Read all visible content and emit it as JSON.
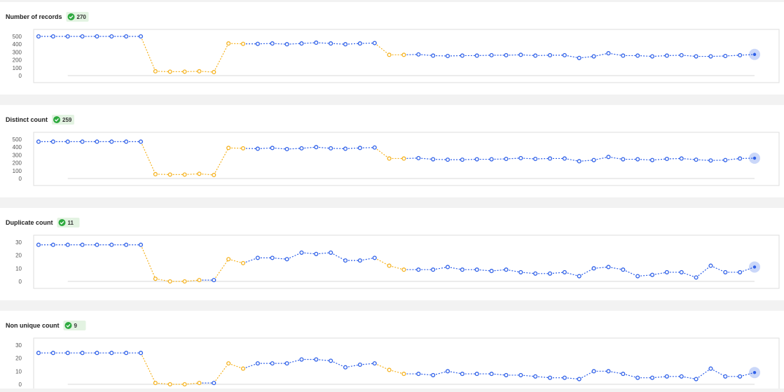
{
  "chart_data": [
    {
      "type": "line",
      "title": "Number of records",
      "badge": 270,
      "ylim": [
        0,
        500
      ],
      "yticks": [
        0,
        100,
        200,
        300,
        400,
        500
      ],
      "values": [
        500,
        500,
        500,
        500,
        500,
        500,
        500,
        500,
        55,
        50,
        50,
        55,
        45,
        410,
        405,
        405,
        410,
        400,
        410,
        420,
        410,
        400,
        410,
        415,
        265,
        265,
        270,
        255,
        250,
        255,
        255,
        260,
        260,
        265,
        255,
        260,
        260,
        225,
        245,
        285,
        255,
        255,
        245,
        255,
        260,
        245,
        245,
        250,
        260,
        270
      ],
      "point_colors": [
        "#2d5fe8",
        "#2d5fe8",
        "#2d5fe8",
        "#2d5fe8",
        "#2d5fe8",
        "#2d5fe8",
        "#2d5fe8",
        "#2d5fe8",
        "#f5b21f",
        "#f5b21f",
        "#f5b21f",
        "#f5b21f",
        "#f5b21f",
        "#f5b21f",
        "#f5b21f",
        "#2d5fe8",
        "#2d5fe8",
        "#2d5fe8",
        "#2d5fe8",
        "#2d5fe8",
        "#2d5fe8",
        "#2d5fe8",
        "#2d5fe8",
        "#2d5fe8",
        "#f5b21f",
        "#f5b21f",
        "#2d5fe8",
        "#2d5fe8",
        "#2d5fe8",
        "#2d5fe8",
        "#2d5fe8",
        "#2d5fe8",
        "#2d5fe8",
        "#2d5fe8",
        "#2d5fe8",
        "#2d5fe8",
        "#2d5fe8",
        "#2d5fe8",
        "#2d5fe8",
        "#2d5fe8",
        "#2d5fe8",
        "#2d5fe8",
        "#2d5fe8",
        "#2d5fe8",
        "#2d5fe8",
        "#2d5fe8",
        "#2d5fe8",
        "#2d5fe8",
        "#2d5fe8",
        "#2d5fe8"
      ]
    },
    {
      "type": "line",
      "title": "Distinct count",
      "badge": 259,
      "ylim": [
        0,
        500
      ],
      "yticks": [
        0,
        100,
        200,
        300,
        400,
        500
      ],
      "values": [
        470,
        470,
        470,
        470,
        470,
        470,
        470,
        470,
        55,
        50,
        50,
        60,
        45,
        390,
        385,
        380,
        390,
        375,
        385,
        400,
        385,
        380,
        390,
        395,
        255,
        255,
        260,
        245,
        240,
        240,
        245,
        245,
        250,
        260,
        250,
        255,
        255,
        220,
        235,
        275,
        245,
        245,
        235,
        250,
        255,
        240,
        230,
        235,
        255,
        259
      ],
      "point_colors": [
        "#2d5fe8",
        "#2d5fe8",
        "#2d5fe8",
        "#2d5fe8",
        "#2d5fe8",
        "#2d5fe8",
        "#2d5fe8",
        "#2d5fe8",
        "#f5b21f",
        "#f5b21f",
        "#f5b21f",
        "#f5b21f",
        "#f5b21f",
        "#f5b21f",
        "#f5b21f",
        "#2d5fe8",
        "#2d5fe8",
        "#2d5fe8",
        "#2d5fe8",
        "#2d5fe8",
        "#2d5fe8",
        "#2d5fe8",
        "#2d5fe8",
        "#2d5fe8",
        "#f5b21f",
        "#f5b21f",
        "#2d5fe8",
        "#2d5fe8",
        "#2d5fe8",
        "#2d5fe8",
        "#2d5fe8",
        "#2d5fe8",
        "#2d5fe8",
        "#2d5fe8",
        "#2d5fe8",
        "#2d5fe8",
        "#2d5fe8",
        "#2d5fe8",
        "#2d5fe8",
        "#2d5fe8",
        "#2d5fe8",
        "#2d5fe8",
        "#2d5fe8",
        "#2d5fe8",
        "#2d5fe8",
        "#2d5fe8",
        "#2d5fe8",
        "#2d5fe8",
        "#2d5fe8",
        "#2d5fe8"
      ]
    },
    {
      "type": "line",
      "title": "Duplicate count",
      "badge": 11,
      "ylim": [
        0,
        30
      ],
      "yticks": [
        0,
        10,
        20,
        30
      ],
      "values": [
        28,
        28,
        28,
        28,
        28,
        28,
        28,
        28,
        2,
        0,
        0,
        1,
        1,
        17,
        14,
        18,
        18,
        17,
        22,
        21,
        22,
        16,
        16,
        18,
        12,
        9,
        9,
        9,
        11,
        9,
        9,
        8,
        9,
        7,
        6,
        6,
        7,
        4,
        10,
        11,
        9,
        4,
        5,
        7,
        7,
        3,
        12,
        7,
        7,
        11
      ],
      "point_colors": [
        "#2d5fe8",
        "#2d5fe8",
        "#2d5fe8",
        "#2d5fe8",
        "#2d5fe8",
        "#2d5fe8",
        "#2d5fe8",
        "#2d5fe8",
        "#f5b21f",
        "#f5b21f",
        "#f5b21f",
        "#f5b21f",
        "#2d5fe8",
        "#f5b21f",
        "#f5b21f",
        "#2d5fe8",
        "#2d5fe8",
        "#2d5fe8",
        "#2d5fe8",
        "#2d5fe8",
        "#2d5fe8",
        "#2d5fe8",
        "#2d5fe8",
        "#2d5fe8",
        "#f5b21f",
        "#f5b21f",
        "#2d5fe8",
        "#2d5fe8",
        "#2d5fe8",
        "#2d5fe8",
        "#2d5fe8",
        "#2d5fe8",
        "#2d5fe8",
        "#2d5fe8",
        "#2d5fe8",
        "#2d5fe8",
        "#2d5fe8",
        "#2d5fe8",
        "#2d5fe8",
        "#2d5fe8",
        "#2d5fe8",
        "#2d5fe8",
        "#2d5fe8",
        "#2d5fe8",
        "#2d5fe8",
        "#2d5fe8",
        "#2d5fe8",
        "#2d5fe8",
        "#2d5fe8",
        "#2d5fe8"
      ]
    },
    {
      "type": "line",
      "title": "Non unique count",
      "badge": 9,
      "ylim": [
        0,
        30
      ],
      "yticks": [
        0,
        10,
        20,
        30
      ],
      "values": [
        24,
        24,
        24,
        24,
        24,
        24,
        24,
        24,
        1,
        0,
        0,
        1,
        1,
        16,
        12,
        16,
        16,
        16,
        19,
        19,
        18,
        13,
        15,
        16,
        11,
        8,
        8,
        7,
        10,
        8,
        8,
        8,
        7,
        7,
        6,
        5,
        5,
        4,
        10,
        10,
        8,
        5,
        5,
        6,
        6,
        4,
        12,
        6,
        6,
        9
      ],
      "point_colors": [
        "#2d5fe8",
        "#2d5fe8",
        "#2d5fe8",
        "#2d5fe8",
        "#2d5fe8",
        "#2d5fe8",
        "#2d5fe8",
        "#2d5fe8",
        "#f5b21f",
        "#f5b21f",
        "#f5b21f",
        "#f5b21f",
        "#2d5fe8",
        "#f5b21f",
        "#f5b21f",
        "#2d5fe8",
        "#2d5fe8",
        "#2d5fe8",
        "#2d5fe8",
        "#2d5fe8",
        "#2d5fe8",
        "#2d5fe8",
        "#2d5fe8",
        "#2d5fe8",
        "#f5b21f",
        "#f5b21f",
        "#2d5fe8",
        "#2d5fe8",
        "#2d5fe8",
        "#2d5fe8",
        "#2d5fe8",
        "#2d5fe8",
        "#2d5fe8",
        "#2d5fe8",
        "#2d5fe8",
        "#2d5fe8",
        "#2d5fe8",
        "#2d5fe8",
        "#2d5fe8",
        "#2d5fe8",
        "#2d5fe8",
        "#2d5fe8",
        "#2d5fe8",
        "#2d5fe8",
        "#2d5fe8",
        "#2d5fe8",
        "#2d5fe8",
        "#2d5fe8",
        "#2d5fe8",
        "#2d5fe8"
      ]
    }
  ]
}
